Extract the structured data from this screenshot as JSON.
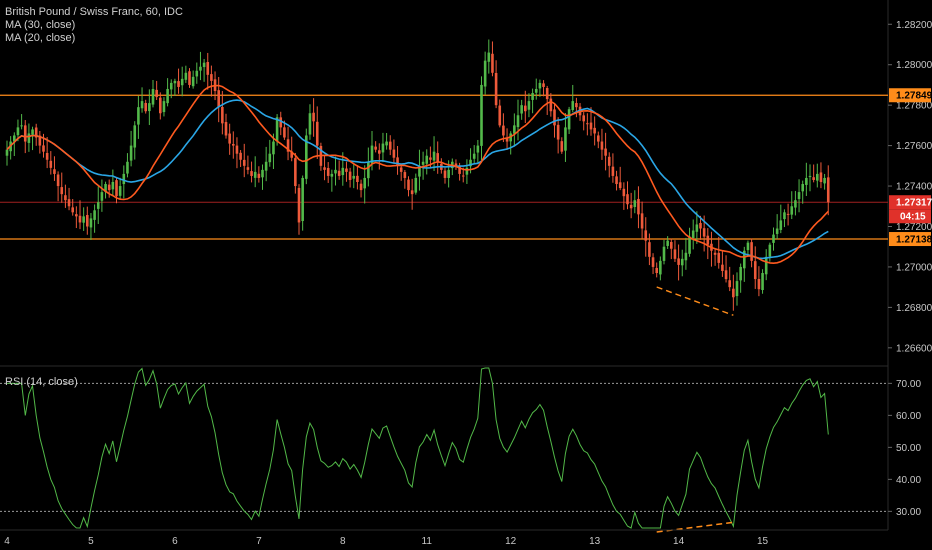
{
  "legend": {
    "symbol_line": "British Pound / Swiss Franc, 60, IDC",
    "ma30_label": "MA (30, close)",
    "ma20_label": "MA (20, close)",
    "rsi_label": "RSI (14, close)"
  },
  "colors": {
    "background": "#000000",
    "up_candle": "#53b94a",
    "down_candle": "#ee5a3b",
    "ma30": "#2aa6e6",
    "ma20": "#ff5a1f",
    "hline": "#ff8c1a",
    "current_line": "#a02020",
    "rsi_line": "#52b848",
    "divergence": "#ff8c1a"
  },
  "chart_data": [
    {
      "type": "candlestick",
      "title": "British Pound / Swiss Franc, 60, IDC",
      "ylim": [
        1.2652,
        1.2832
      ],
      "y_ticks": [
        "1.28200",
        "1.28000",
        "1.27800",
        "1.27600",
        "1.27400",
        "1.27200",
        "1.27000",
        "1.26800",
        "1.26600"
      ],
      "x_ticks": [
        "4",
        "5",
        "6",
        "7",
        "8",
        "11",
        "12",
        "13",
        "14",
        "15"
      ],
      "x_tick_index": [
        0,
        23,
        46,
        69,
        92,
        115,
        138,
        161,
        184,
        207
      ],
      "horizontal_levels": [
        1.27849,
        1.27138
      ],
      "current_price": "1.27317",
      "upper_level_label": "1.27849",
      "lower_level_label": "1.27138",
      "countdown": "04:15",
      "closes": [
        1.2758,
        1.2762,
        1.2765,
        1.2769,
        1.277,
        1.2762,
        1.2766,
        1.2768,
        1.2764,
        1.276,
        1.2757,
        1.2753,
        1.2749,
        1.2746,
        1.274,
        1.2736,
        1.2733,
        1.273,
        1.2727,
        1.2725,
        1.2722,
        1.2725,
        1.272,
        1.2724,
        1.2728,
        1.2732,
        1.2737,
        1.2741,
        1.2738,
        1.2742,
        1.2735,
        1.274,
        1.2746,
        1.2752,
        1.276,
        1.277,
        1.2779,
        1.2782,
        1.2777,
        1.2781,
        1.2788,
        1.2784,
        1.2776,
        1.2782,
        1.2788,
        1.2791,
        1.2792,
        1.2789,
        1.2793,
        1.2796,
        1.279,
        1.2794,
        1.2797,
        1.2799,
        1.2801,
        1.2795,
        1.2792,
        1.2787,
        1.2779,
        1.2771,
        1.2765,
        1.2761,
        1.276,
        1.2756,
        1.2753,
        1.275,
        1.2748,
        1.2745,
        1.2747,
        1.2744,
        1.2748,
        1.2752,
        1.2756,
        1.2762,
        1.2774,
        1.2769,
        1.2764,
        1.2757,
        1.2754,
        1.274,
        1.2722,
        1.2744,
        1.2765,
        1.2776,
        1.2772,
        1.276,
        1.275,
        1.2748,
        1.2745,
        1.2746,
        1.2748,
        1.2745,
        1.2749,
        1.2747,
        1.2743,
        1.2745,
        1.2742,
        1.2738,
        1.2744,
        1.2752,
        1.276,
        1.2758,
        1.2756,
        1.2761,
        1.2762,
        1.2758,
        1.2754,
        1.275,
        1.2747,
        1.2744,
        1.2738,
        1.2736,
        1.2744,
        1.275,
        1.2752,
        1.2755,
        1.2753,
        1.2757,
        1.2752,
        1.2748,
        1.2744,
        1.2748,
        1.2752,
        1.275,
        1.2746,
        1.2745,
        1.2749,
        1.2753,
        1.2756,
        1.276,
        1.279,
        1.2802,
        1.2806,
        1.2796,
        1.278,
        1.277,
        1.2765,
        1.2762,
        1.2766,
        1.277,
        1.2775,
        1.278,
        1.2777,
        1.2782,
        1.2786,
        1.2788,
        1.2791,
        1.2789,
        1.2783,
        1.2777,
        1.277,
        1.2763,
        1.2757,
        1.2769,
        1.2778,
        1.2782,
        1.2779,
        1.2775,
        1.2772,
        1.2771,
        1.2768,
        1.2766,
        1.2762,
        1.2758,
        1.2755,
        1.275,
        1.2745,
        1.2741,
        1.2739,
        1.2735,
        1.2731,
        1.2729,
        1.2733,
        1.2726,
        1.2719,
        1.2713,
        1.2705,
        1.27,
        1.2697,
        1.2703,
        1.271,
        1.2713,
        1.2709,
        1.2704,
        1.2701,
        1.2704,
        1.2707,
        1.2715,
        1.2718,
        1.2721,
        1.2719,
        1.2715,
        1.2711,
        1.2708,
        1.2706,
        1.2702,
        1.2698,
        1.2694,
        1.269,
        1.2685,
        1.2693,
        1.27,
        1.2708,
        1.2712,
        1.2703,
        1.2694,
        1.2689,
        1.2697,
        1.2705,
        1.2711,
        1.2716,
        1.2719,
        1.2723,
        1.2727,
        1.2726,
        1.273,
        1.2733,
        1.2737,
        1.2741,
        1.2744,
        1.2745,
        1.2743,
        1.2746,
        1.2742,
        1.2744,
        1.2732
      ]
    },
    {
      "type": "line",
      "title": "RSI (14, close)",
      "ylim": [
        24.8,
        74.8
      ],
      "y_ticks": [
        "70.00",
        "60.00",
        "50.00",
        "40.00",
        "30.00"
      ],
      "reference_levels": [
        70,
        30
      ]
    }
  ]
}
